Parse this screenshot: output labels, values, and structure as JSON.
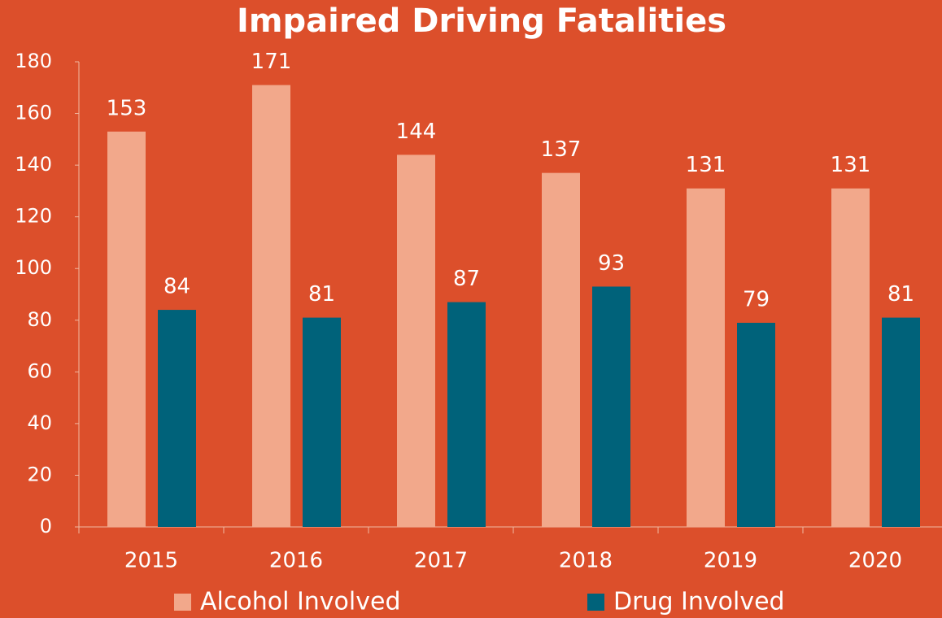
{
  "chart_data": {
    "type": "bar",
    "title": "Impaired Driving Fatalities",
    "categories": [
      "2015",
      "2016",
      "2017",
      "2018",
      "2019",
      "2020"
    ],
    "series": [
      {
        "name": "Alcohol Involved",
        "color": "#f2a88b",
        "values": [
          153,
          171,
          144,
          137,
          131,
          131
        ]
      },
      {
        "name": "Drug Involved",
        "color": "#00627a",
        "values": [
          84,
          81,
          87,
          93,
          79,
          81
        ]
      }
    ],
    "ylim": [
      0,
      180
    ],
    "yticks": [
      0,
      20,
      40,
      60,
      80,
      100,
      120,
      140,
      160,
      180
    ],
    "grid": false,
    "legend": "bottom",
    "data_labels": true
  }
}
